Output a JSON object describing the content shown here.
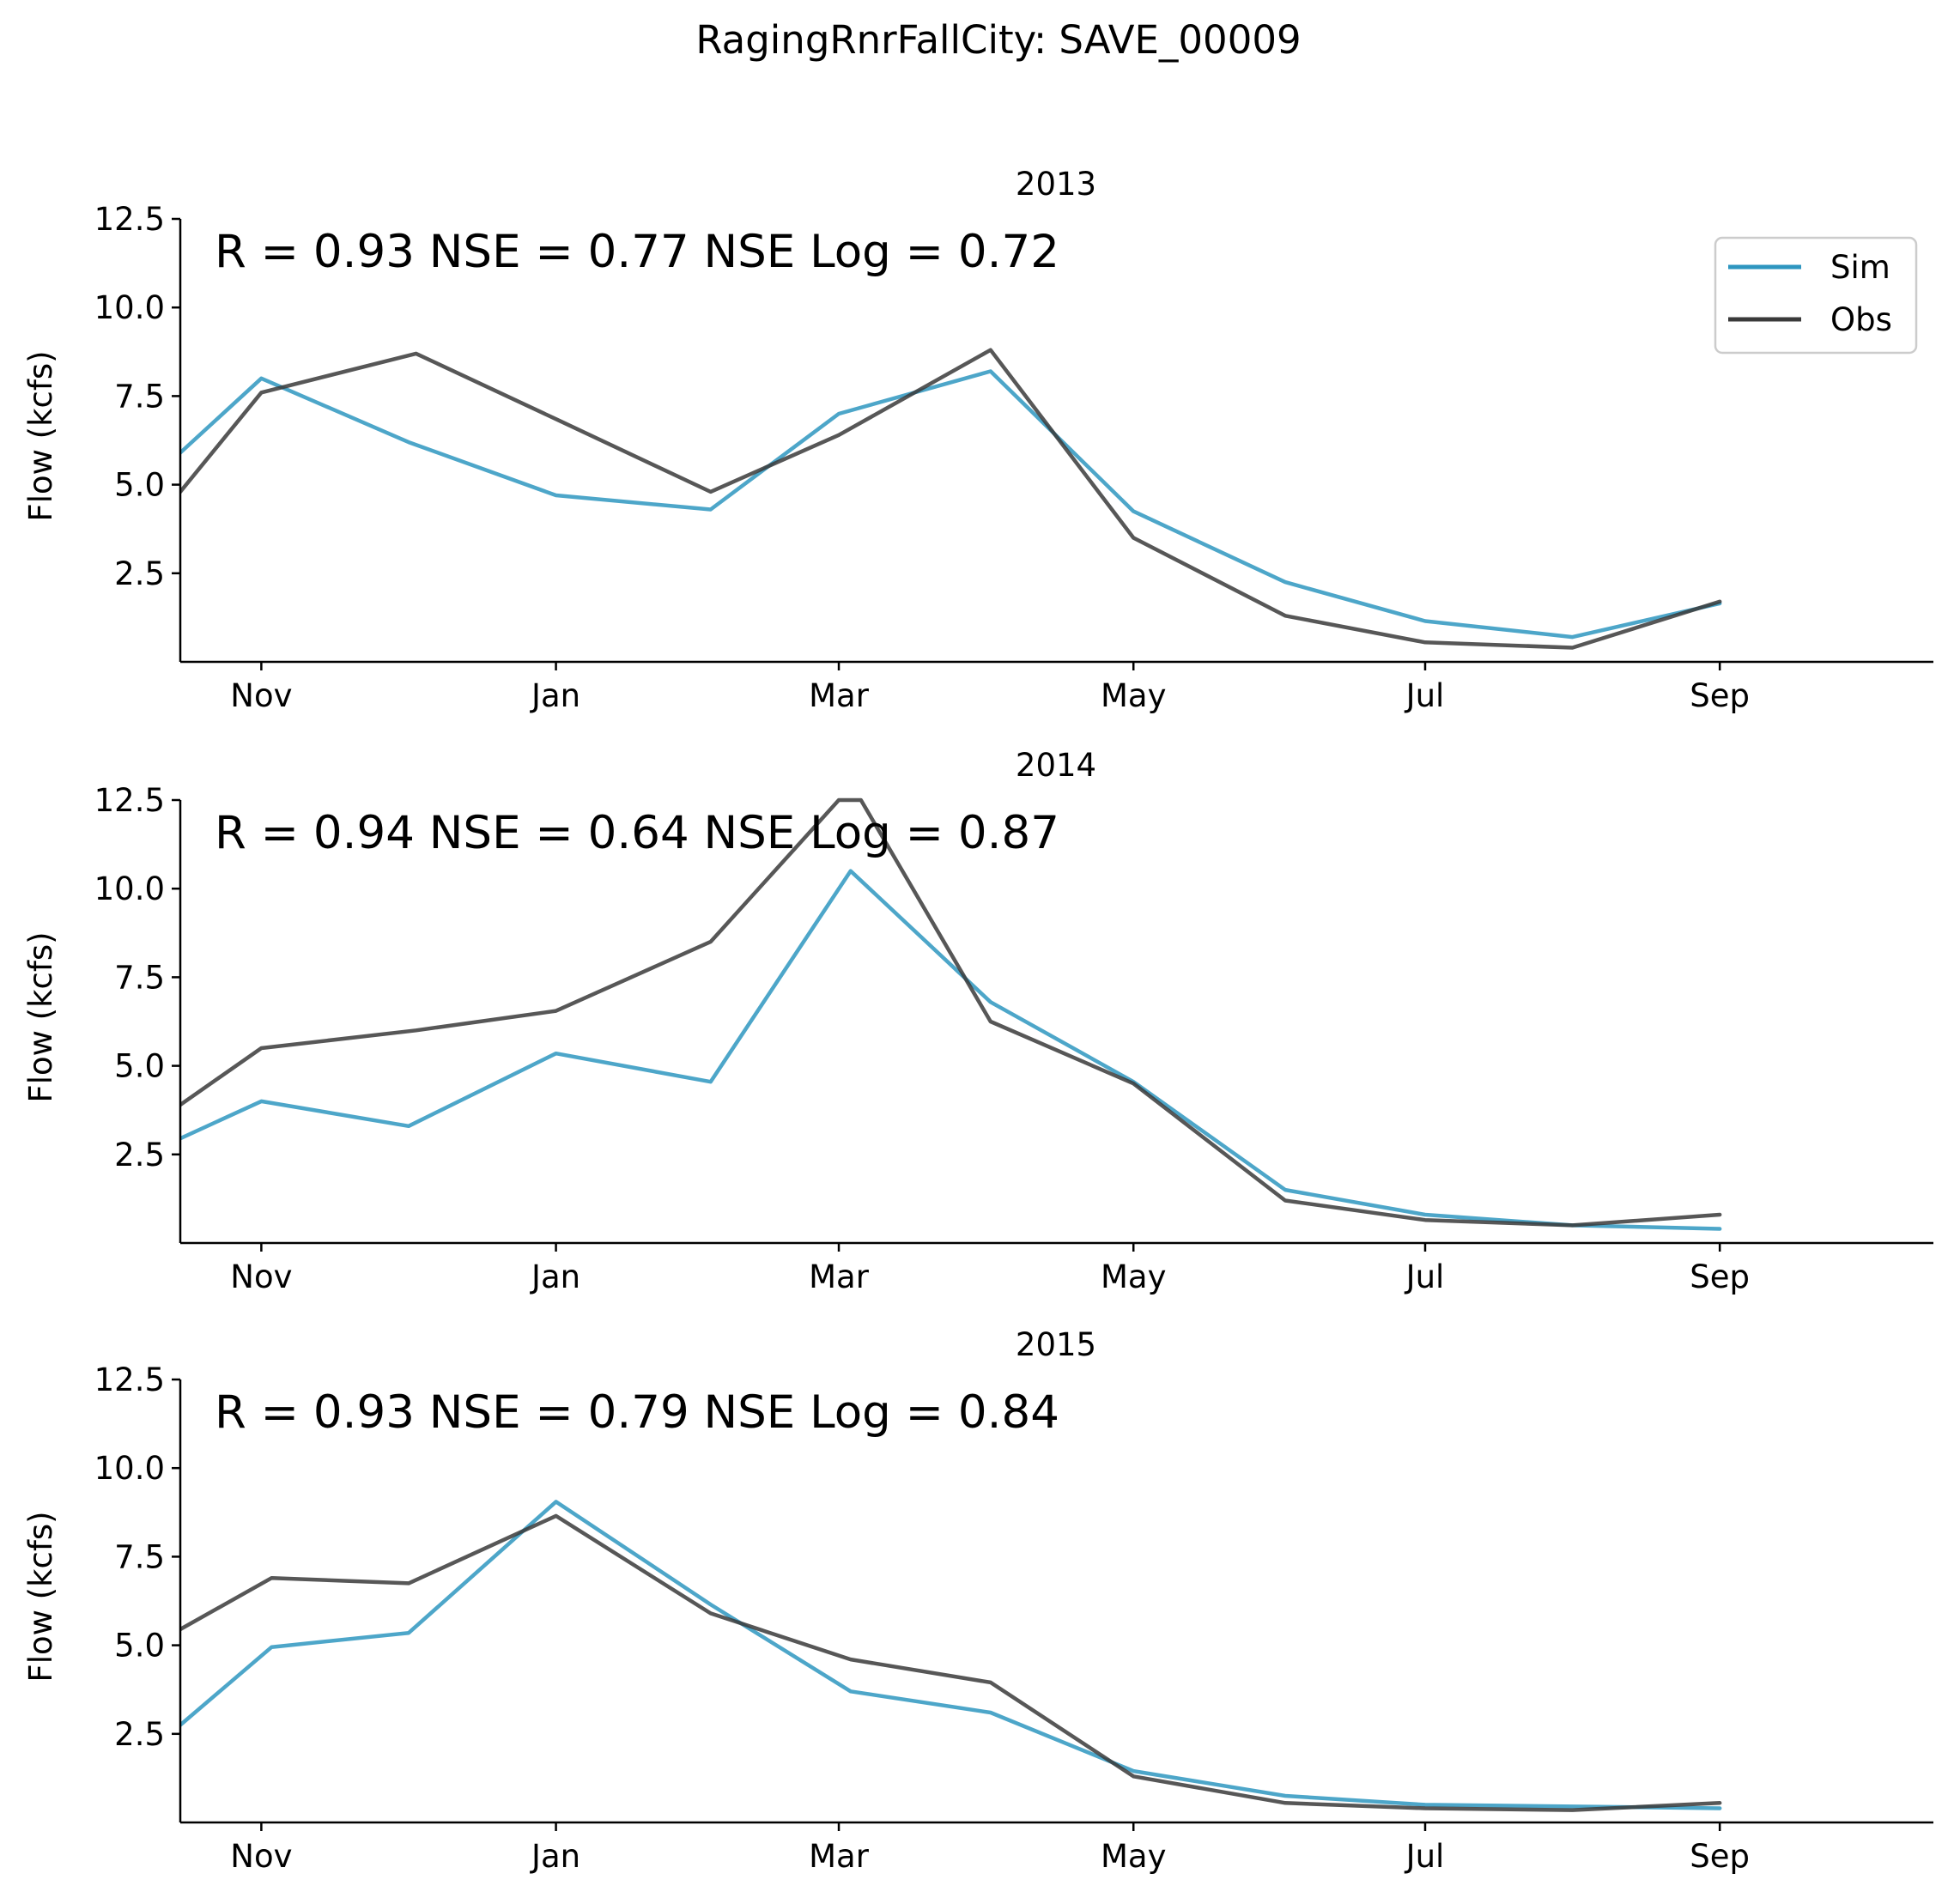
{
  "chart_data": {
    "type": "line",
    "title": "RagingRnrFallCity: SAVE_00009",
    "xlabel": "",
    "ylabel": "Flow (kcfs)",
    "ylim": [
      0,
      12.5
    ],
    "yticks": [
      2.5,
      5.0,
      7.5,
      10.0,
      12.5
    ],
    "ytick_labels": [
      "2.5",
      "5.0",
      "7.5",
      "10.0",
      "12.5"
    ],
    "x_unit": "months since October 1",
    "xlim": [
      0.0,
      11.9
    ],
    "xticks": [
      0.55,
      2.55,
      4.47,
      6.47,
      8.45,
      10.45
    ],
    "xtick_labels": [
      "Nov",
      "Jan",
      "Mar",
      "May",
      "Jul",
      "Sep"
    ],
    "grid": false,
    "legend": {
      "placement": "top-right",
      "entries": [
        "Sim",
        "Obs"
      ]
    },
    "colors": {
      "sim": "#2e96c0",
      "obs": "#3a3a3a"
    },
    "panels": [
      {
        "title": "2013",
        "annotation": "R = 0.93  NSE = 0.77  NSE Log = 0.72",
        "show_legend": true,
        "series": [
          {
            "name": "Sim",
            "x": [
              0.0,
              0.55,
              1.55,
              2.55,
              3.6,
              4.47,
              5.5,
              6.47,
              7.5,
              8.45,
              9.45,
              10.45
            ],
            "values": [
              5.9,
              8.0,
              6.2,
              4.7,
              4.3,
              7.0,
              8.2,
              4.25,
              2.25,
              1.15,
              0.7,
              1.65
            ]
          },
          {
            "name": "Obs",
            "x": [
              0.0,
              0.55,
              1.6,
              2.55,
              3.6,
              4.47,
              5.5,
              6.47,
              7.5,
              8.45,
              9.45,
              10.45
            ],
            "values": [
              4.8,
              7.6,
              8.7,
              6.85,
              4.8,
              6.4,
              8.8,
              3.5,
              1.3,
              0.55,
              0.4,
              1.7
            ]
          }
        ]
      },
      {
        "title": "2014",
        "annotation": "R = 0.94  NSE = 0.64  NSE Log = 0.87",
        "show_legend": false,
        "series": [
          {
            "name": "Sim",
            "x": [
              0.0,
              0.55,
              1.55,
              2.55,
              3.6,
              4.55,
              5.5,
              6.47,
              7.5,
              8.45,
              9.45,
              10.45
            ],
            "values": [
              2.95,
              4.0,
              3.3,
              5.35,
              4.55,
              10.5,
              6.8,
              4.55,
              1.5,
              0.8,
              0.5,
              0.4
            ]
          },
          {
            "name": "Obs",
            "x": [
              0.0,
              0.55,
              1.6,
              2.55,
              3.6,
              4.47,
              4.62,
              5.5,
              6.47,
              7.5,
              8.45,
              9.45,
              10.45
            ],
            "values": [
              3.9,
              5.5,
              6.0,
              6.55,
              8.5,
              12.5,
              12.5,
              6.25,
              4.5,
              1.2,
              0.65,
              0.5,
              0.8
            ]
          }
        ]
      },
      {
        "title": "2015",
        "annotation": "R = 0.93  NSE = 0.79  NSE Log = 0.84",
        "show_legend": false,
        "series": [
          {
            "name": "Sim",
            "x": [
              0.0,
              0.62,
              1.55,
              2.55,
              3.6,
              4.55,
              5.5,
              6.47,
              7.5,
              8.45,
              9.45,
              10.45
            ],
            "values": [
              2.75,
              4.95,
              5.35,
              9.05,
              6.15,
              3.7,
              3.1,
              1.45,
              0.75,
              0.5,
              0.45,
              0.4
            ]
          },
          {
            "name": "Obs",
            "x": [
              0.0,
              0.62,
              1.55,
              2.55,
              3.6,
              4.55,
              5.5,
              6.47,
              7.5,
              8.45,
              9.45,
              10.45
            ],
            "values": [
              5.45,
              6.9,
              6.75,
              8.65,
              5.9,
              4.6,
              3.95,
              1.3,
              0.55,
              0.4,
              0.35,
              0.55
            ]
          }
        ]
      }
    ]
  }
}
